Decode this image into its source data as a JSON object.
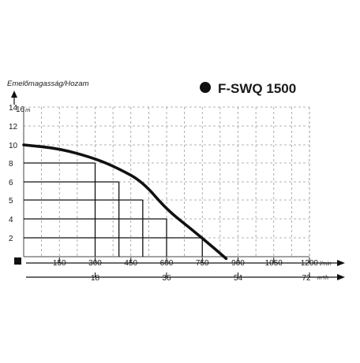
{
  "chart_data": {
    "type": "line",
    "title": "F-SWQ 1500",
    "ylabel": "Emelőmagasság/Hozam",
    "y_unit": "m",
    "x_unit": "l/min",
    "x2_unit": "m³/h",
    "ylim": [
      0,
      16
    ],
    "xlim": [
      0,
      1200
    ],
    "y_ticks": [
      2,
      4,
      5,
      6,
      8,
      10,
      12,
      14,
      16
    ],
    "x_ticks": [
      150,
      300,
      450,
      600,
      750,
      900,
      1050,
      1200
    ],
    "x2_ticks": [
      18,
      36,
      54,
      72
    ],
    "grid": true,
    "colors": {
      "line": "#111111",
      "grid": "#9a9a9a",
      "frame": "#444444"
    },
    "series": [
      {
        "x": [
          0,
          150,
          300,
          400,
          500,
          600,
          700,
          800,
          850
        ],
        "y": [
          10,
          9.6,
          8.5,
          7.4,
          6,
          4.5,
          3,
          0.9,
          -0.2
        ]
      }
    ],
    "guides": [
      {
        "x": 300,
        "y": 8
      },
      {
        "x": 400,
        "y": 6
      },
      {
        "x": 500,
        "y": 5
      },
      {
        "x": 600,
        "y": 4
      },
      {
        "x": 750,
        "y": 2
      }
    ]
  }
}
